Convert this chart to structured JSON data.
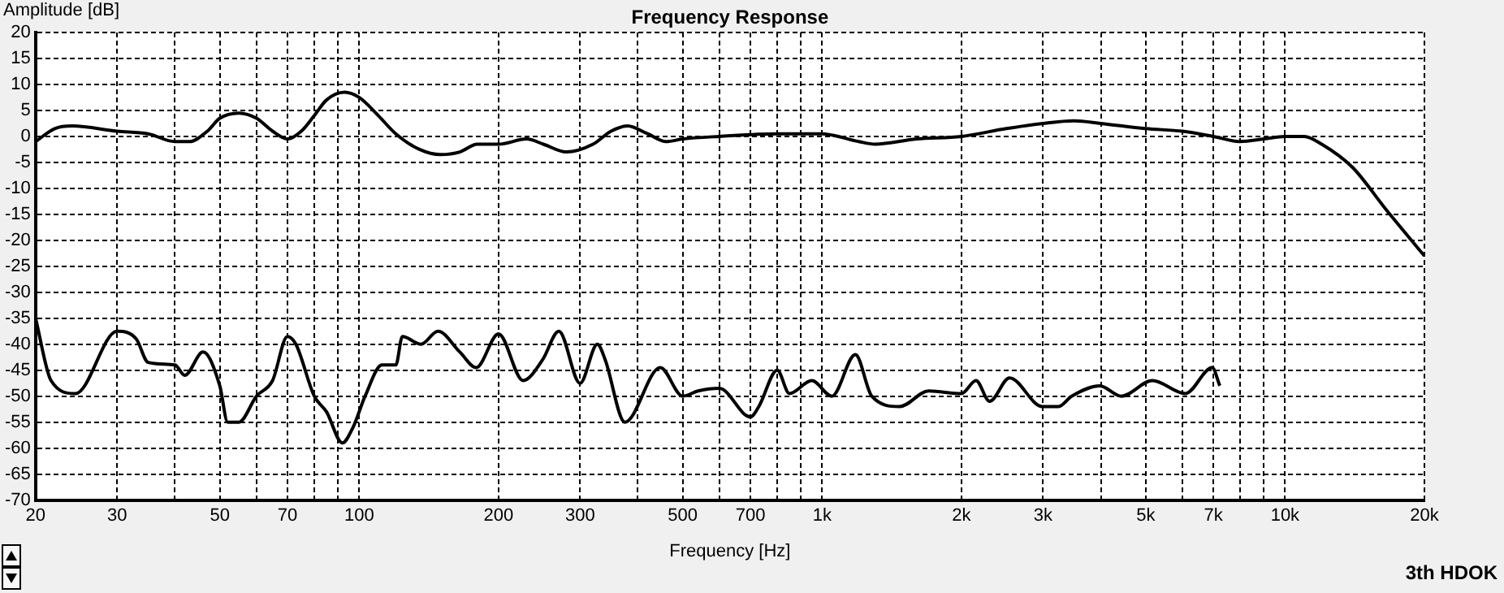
{
  "chart_data": {
    "type": "line",
    "title": "Frequency Response",
    "xlabel": "Frequency [Hz]",
    "ylabel": "Amplitude [dB]",
    "annotations": [
      "3th HDOK"
    ],
    "log": "x",
    "grid": true,
    "legend": false,
    "marker": "none",
    "line_style": "solid",
    "xlim": [
      20,
      20000
    ],
    "xticks": [
      20,
      30,
      {
        "value": 40,
        "label": null
      },
      50,
      {
        "value": 60,
        "label": null
      },
      70,
      {
        "value": 80,
        "label": null
      },
      {
        "value": 90,
        "label": null
      },
      100,
      200,
      300,
      {
        "value": 400,
        "label": null
      },
      500,
      {
        "value": 600,
        "label": null
      },
      700,
      {
        "value": 800,
        "label": null
      },
      {
        "value": 900,
        "label": null
      },
      {
        "value": 1000,
        "label": "1k"
      },
      {
        "value": 2000,
        "label": "2k"
      },
      {
        "value": 3000,
        "label": "3k"
      },
      {
        "value": 4000,
        "label": null
      },
      {
        "value": 5000,
        "label": "5k"
      },
      {
        "value": 6000,
        "label": null
      },
      {
        "value": 7000,
        "label": "7k"
      },
      {
        "value": 8000,
        "label": null
      },
      {
        "value": 9000,
        "label": null
      },
      {
        "value": 10000,
        "label": "10k"
      },
      {
        "value": 20000,
        "label": "20k"
      }
    ],
    "ylim": [
      -70,
      20
    ],
    "yticks": [
      -70,
      -65,
      -60,
      -55,
      -50,
      -45,
      -40,
      -35,
      -30,
      -25,
      -20,
      -15,
      -10,
      -5,
      0,
      5,
      10,
      15,
      20
    ],
    "series": [
      {
        "color": "#000000",
        "x": [
          20,
          22,
          24,
          30,
          35,
          40,
          43,
          47,
          50,
          55,
          60,
          65,
          70,
          75,
          80,
          85,
          93,
          100,
          110,
          120,
          135,
          150,
          165,
          180,
          200,
          230,
          250,
          280,
          320,
          350,
          380,
          420,
          460,
          500,
          600,
          800,
          1000,
          1200,
          1300,
          1600,
          2000,
          2500,
          3000,
          3500,
          4000,
          5000,
          6000,
          7000,
          8000,
          9000,
          10000,
          11000,
          12000,
          14000,
          16500,
          20000
        ],
        "values": [
          -1,
          1.5,
          2,
          1,
          0.5,
          -1,
          -1,
          1,
          3.5,
          4.5,
          3.5,
          1,
          -0.5,
          1,
          4,
          7,
          8.5,
          7.5,
          4,
          0.5,
          -2.5,
          -3.5,
          -3,
          -1.5,
          -1.5,
          -0.5,
          -1.5,
          -3,
          -1.5,
          1,
          2,
          0.5,
          -1,
          -0.5,
          0,
          0.5,
          0.5,
          -1,
          -1.5,
          -0.5,
          0,
          1.5,
          2.5,
          3,
          2.5,
          1.5,
          1,
          0,
          -1,
          -0.5,
          0,
          0,
          -1.5,
          -6,
          -14,
          -23
        ]
      },
      {
        "color": "#000000",
        "x": [
          20,
          21.6,
          24.4,
          30,
          33,
          35,
          40,
          42,
          46,
          50,
          52,
          55,
          60,
          65,
          70,
          73,
          80,
          85,
          92,
          97,
          103,
          112,
          120,
          124,
          136,
          148,
          165,
          179,
          200,
          226,
          249,
          270,
          300,
          327,
          340,
          375,
          447,
          500,
          540,
          600,
          700,
          730,
          800,
          850,
          950,
          1050,
          1180,
          1280,
          1470,
          1700,
          2000,
          2150,
          2300,
          2540,
          2990,
          3240,
          3460,
          3980,
          4430,
          5170,
          6090,
          6960,
          7230
        ],
        "values": [
          -35,
          -47,
          -49.5,
          -37.5,
          -39,
          -43.5,
          -44,
          -46,
          -41.5,
          -48,
          -55,
          -55,
          -50,
          -47,
          -38.5,
          -40,
          -50,
          -53,
          -59,
          -56,
          -50,
          -44,
          -44,
          -38.5,
          -40,
          -37.5,
          -41.5,
          -44.5,
          -38,
          -47,
          -43,
          -37.5,
          -47.5,
          -40,
          -43,
          -55,
          -44.5,
          -50,
          -49,
          -48.5,
          -54,
          -52,
          -45,
          -49.5,
          -47,
          -50,
          -42,
          -50,
          -52,
          -49,
          -49.5,
          -47,
          -51,
          -46.5,
          -52,
          -52,
          -50,
          -48,
          -50,
          -47,
          -49.5,
          -44.5,
          -48
        ]
      }
    ]
  }
}
